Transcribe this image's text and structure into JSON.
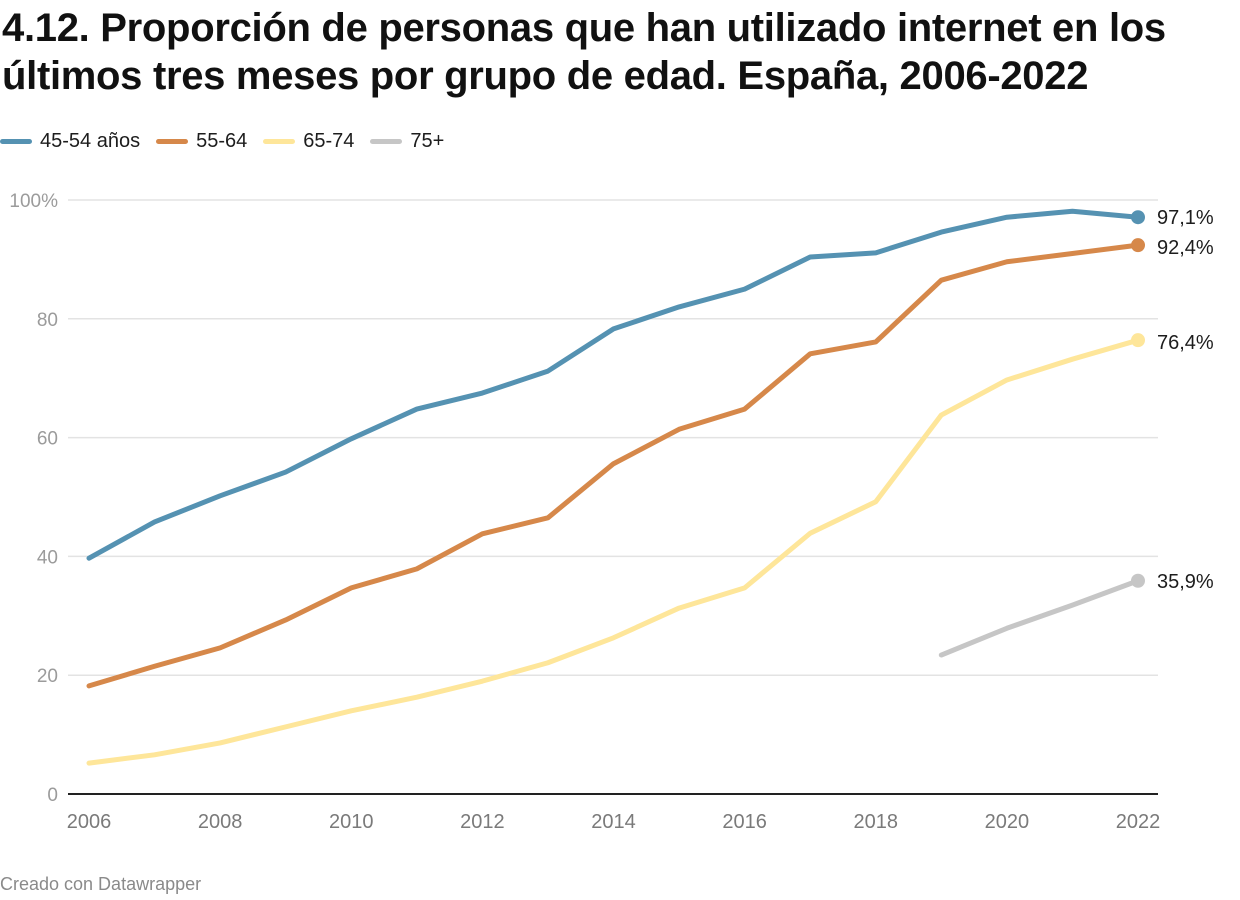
{
  "title": "4.12. Proporción de personas que han utilizado internet en los últimos tres meses por grupo de edad. España, 2006-2022",
  "footer": "Creado con Datawrapper",
  "legend": [
    {
      "label": "45-54 años",
      "color": "#5592b2"
    },
    {
      "label": "55-64",
      "color": "#d6884a"
    },
    {
      "label": "65-74",
      "color": "#fee69a"
    },
    {
      "label": "75+",
      "color": "#c6c6c6"
    }
  ],
  "chart_data": {
    "type": "line",
    "title": "4.12. Proporción de personas que han utilizado internet en los últimos tres meses por grupo de edad. España, 2006-2022",
    "xlabel": "",
    "ylabel": "",
    "x": [
      2006,
      2007,
      2008,
      2009,
      2010,
      2011,
      2012,
      2013,
      2014,
      2015,
      2016,
      2017,
      2018,
      2019,
      2020,
      2021,
      2022
    ],
    "xlim": [
      2006,
      2022
    ],
    "ylim": [
      0,
      100
    ],
    "x_ticks": [
      2006,
      2008,
      2010,
      2012,
      2014,
      2016,
      2018,
      2020,
      2022
    ],
    "x_tick_labels": [
      "2006",
      "2008",
      "2010",
      "2012",
      "2014",
      "2016",
      "2018",
      "2020",
      "2022"
    ],
    "y_ticks": [
      0,
      20,
      40,
      60,
      80,
      100
    ],
    "y_tick_labels": [
      "0",
      "20",
      "40",
      "60",
      "80",
      "100%"
    ],
    "grid": true,
    "legend_position": "top-left",
    "series": [
      {
        "name": "45-54 años",
        "color": "#5592b2",
        "end_label": "97,1%",
        "values": [
          39.7,
          45.8,
          50.2,
          54.2,
          59.8,
          64.8,
          67.5,
          71.2,
          78.3,
          82.0,
          85.0,
          90.4,
          91.1,
          94.6,
          97.1,
          98.1,
          97.1
        ]
      },
      {
        "name": "55-64",
        "color": "#d6884a",
        "end_label": "92,4%",
        "values": [
          18.2,
          21.5,
          24.6,
          29.3,
          34.7,
          37.9,
          43.8,
          46.5,
          55.6,
          61.4,
          64.8,
          74.1,
          76.1,
          86.5,
          89.6,
          91.0,
          92.4
        ]
      },
      {
        "name": "65-74",
        "color": "#fee69a",
        "end_label": "76,4%",
        "values": [
          5.2,
          6.6,
          8.6,
          11.3,
          14.0,
          16.3,
          19.0,
          22.1,
          26.3,
          31.3,
          34.7,
          43.9,
          49.2,
          63.8,
          69.7,
          73.2,
          76.4
        ]
      },
      {
        "name": "75+",
        "color": "#c6c6c6",
        "end_label": "35,9%",
        "values": [
          null,
          null,
          null,
          null,
          null,
          null,
          null,
          null,
          null,
          null,
          null,
          null,
          null,
          23.4,
          27.9,
          31.8,
          35.9
        ]
      }
    ]
  }
}
